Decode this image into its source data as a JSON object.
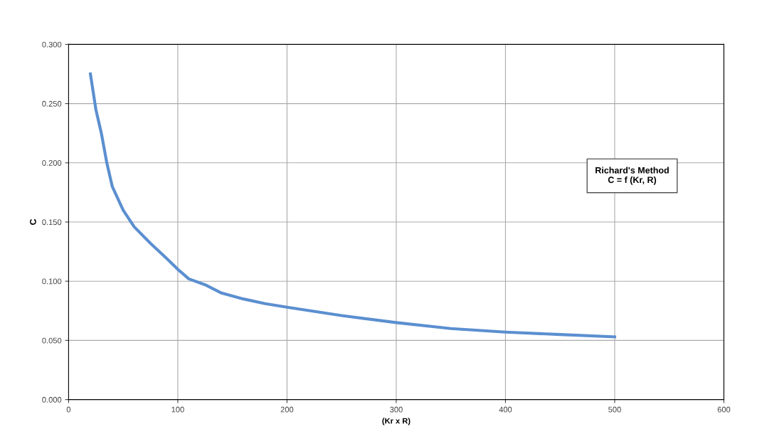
{
  "chart_data": {
    "type": "line",
    "xlabel": "(Kr x R)",
    "ylabel": "C",
    "annotations": [
      "Richard's Method\nC = f (Kr, R)"
    ],
    "x": [
      20,
      25,
      30,
      35,
      40,
      50,
      60,
      75,
      90,
      100,
      110,
      125,
      140,
      160,
      180,
      200,
      250,
      300,
      350,
      400,
      450,
      500
    ],
    "series": [
      {
        "color": "#5b8fd0",
        "values": [
          0.275,
          0.245,
          0.225,
          0.2,
          0.18,
          0.16,
          0.146,
          0.132,
          0.119,
          0.11,
          0.102,
          0.097,
          0.09,
          0.085,
          0.081,
          0.078,
          0.071,
          0.065,
          0.06,
          0.057,
          0.055,
          0.053
        ]
      }
    ],
    "xlim": [
      0,
      600
    ],
    "xticks": [
      0,
      100,
      200,
      300,
      400,
      500,
      600
    ],
    "ylim": [
      0,
      0.3
    ],
    "yticks": [
      {
        "value": 0,
        "label": "0.000"
      },
      {
        "value": 0.05,
        "label": "0.050"
      },
      {
        "value": 0.1,
        "label": "0.100"
      },
      {
        "value": 0.15,
        "label": "0.150"
      },
      {
        "value": 0.2,
        "label": "0.200"
      },
      {
        "value": 0.25,
        "label": "0.250"
      },
      {
        "value": 0.3,
        "label": "0.300"
      }
    ],
    "grid": true,
    "legend": false,
    "marker": "none",
    "line_style": "solid"
  }
}
